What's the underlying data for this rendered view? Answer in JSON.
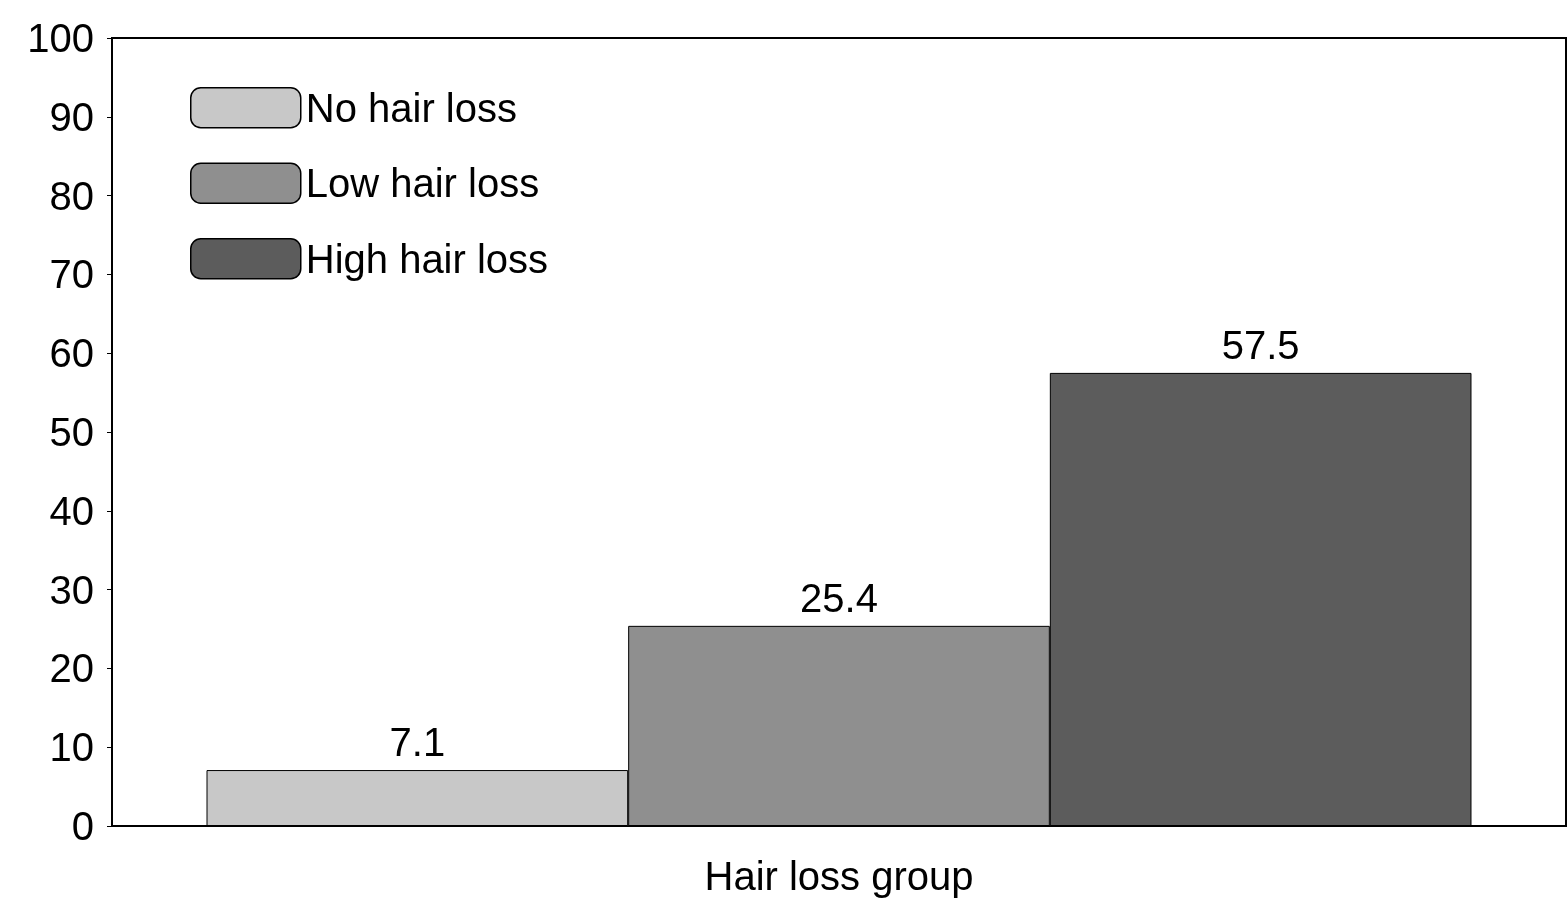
{
  "chart_data": {
    "type": "bar",
    "xlabel": "Hair loss group",
    "categories": [
      null
    ],
    "series": [
      {
        "name": "No hair loss",
        "color": "#c8c8c8",
        "values": [
          7.1
        ]
      },
      {
        "name": "Low hair loss",
        "color": "#8f8f8f",
        "values": [
          25.4
        ]
      },
      {
        "name": "High hair loss",
        "color": "#5c5c5c",
        "values": [
          57.5
        ]
      }
    ],
    "ylim": [
      0,
      100
    ],
    "yticks": [
      0,
      10,
      20,
      30,
      40,
      50,
      60,
      70,
      80,
      90,
      100
    ],
    "grid": false,
    "legend": "top left",
    "data_labels": true
  }
}
